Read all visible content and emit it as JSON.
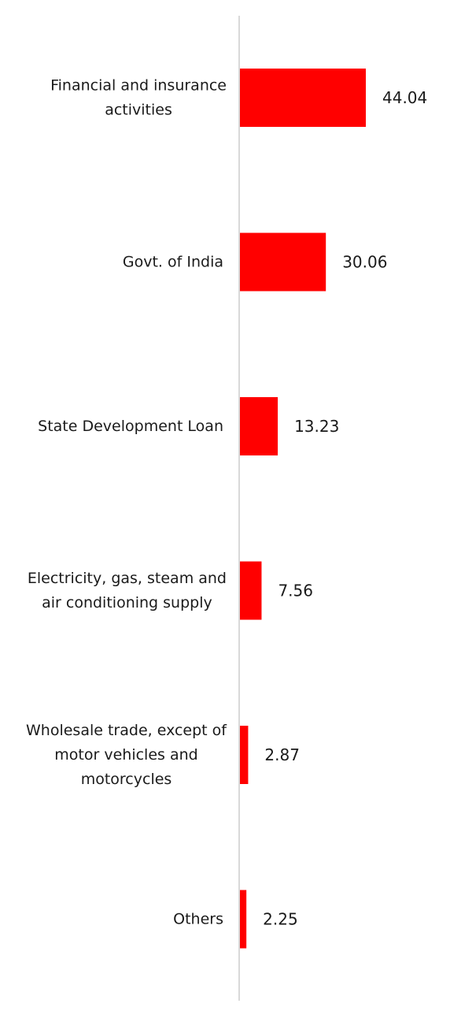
{
  "chart_data": {
    "type": "bar",
    "orientation": "horizontal",
    "categories": [
      [
        "Financial and insurance",
        "activities"
      ],
      [
        "Govt. of India"
      ],
      [
        "State Development Loan"
      ],
      [
        "Electricity, gas, steam and",
        "air conditioning supply"
      ],
      [
        "Wholesale trade, except of",
        "motor vehicles and",
        "motorcycles"
      ],
      [
        "Others"
      ]
    ],
    "values": [
      44.04,
      30.06,
      13.23,
      7.56,
      2.87,
      2.25
    ],
    "value_labels": [
      "44.04",
      "30.06",
      "13.23",
      "7.56",
      "2.87",
      "2.25"
    ],
    "xlim": [
      0,
      44.04
    ],
    "grid": false,
    "legend": "none",
    "colors": {
      "bar": "#ff0000",
      "axis": "#d9d9d9",
      "text": "#1a1a1a"
    }
  }
}
